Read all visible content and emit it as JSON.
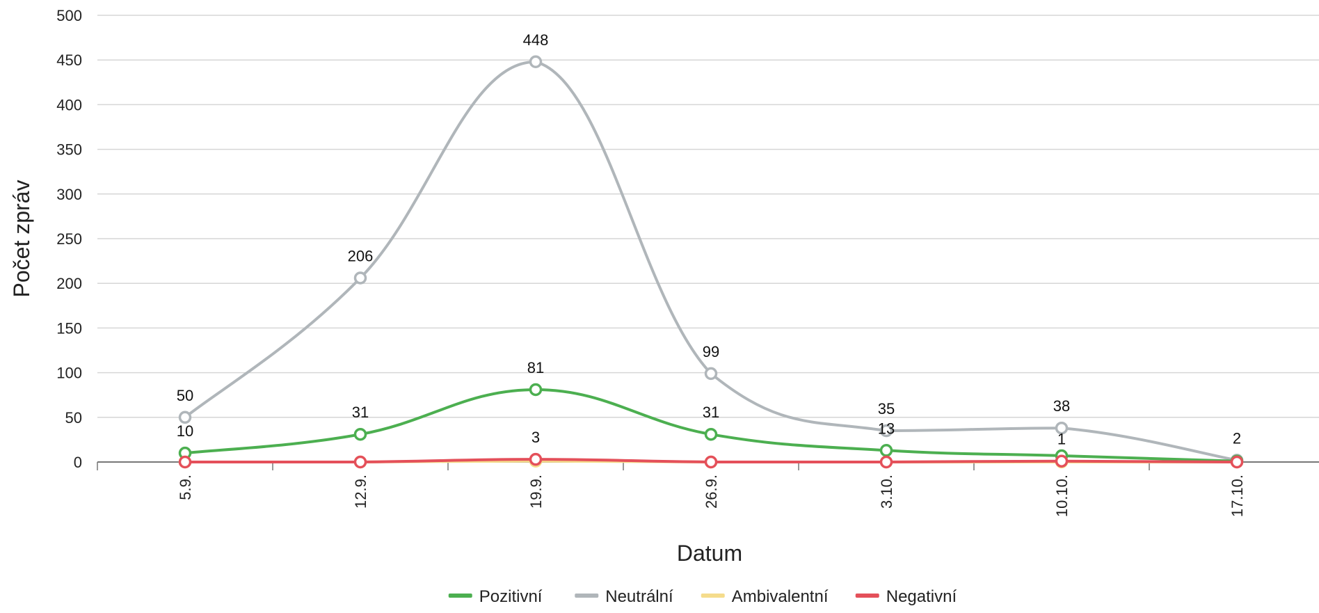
{
  "chart_data": {
    "type": "line",
    "xlabel": "Datum",
    "ylabel": "Počet zpráv",
    "categories": [
      "5.9.",
      "12.9.",
      "19.9.",
      "26.9.",
      "3.10.",
      "10.10.",
      "17.10."
    ],
    "ylim": [
      0,
      500
    ],
    "yticks": [
      0,
      50,
      100,
      150,
      200,
      250,
      300,
      350,
      400,
      450,
      500
    ],
    "grid": true,
    "legend_position": "bottom-center",
    "series": [
      {
        "name": "Pozitivní",
        "color": "#4caf50",
        "values": [
          10,
          31,
          81,
          31,
          13,
          7,
          1
        ],
        "labels": [
          "10",
          "31",
          "81",
          "31",
          "13",
          "",
          ""
        ]
      },
      {
        "name": "Neutrální",
        "color": "#b0b6ba",
        "values": [
          50,
          206,
          448,
          99,
          35,
          38,
          2
        ],
        "labels": [
          "50",
          "206",
          "448",
          "99",
          "35",
          "38",
          "2"
        ]
      },
      {
        "name": "Ambivalentní",
        "color": "#f5dc8c",
        "values": [
          0,
          0,
          1,
          0,
          0,
          0,
          0
        ],
        "labels": [
          "",
          "",
          "",
          "",
          "",
          "",
          ""
        ]
      },
      {
        "name": "Negativní",
        "color": "#e4505a",
        "values": [
          0,
          0,
          3,
          0,
          0,
          1,
          0
        ],
        "labels": [
          "",
          "",
          "3",
          "",
          "",
          "1",
          ""
        ]
      }
    ]
  }
}
